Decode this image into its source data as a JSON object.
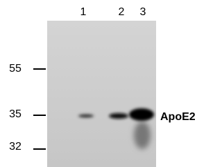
{
  "lanes": [
    "1",
    "2",
    "3"
  ],
  "markers": [
    "55",
    "35",
    "32"
  ],
  "band_label": "ApoE2"
}
